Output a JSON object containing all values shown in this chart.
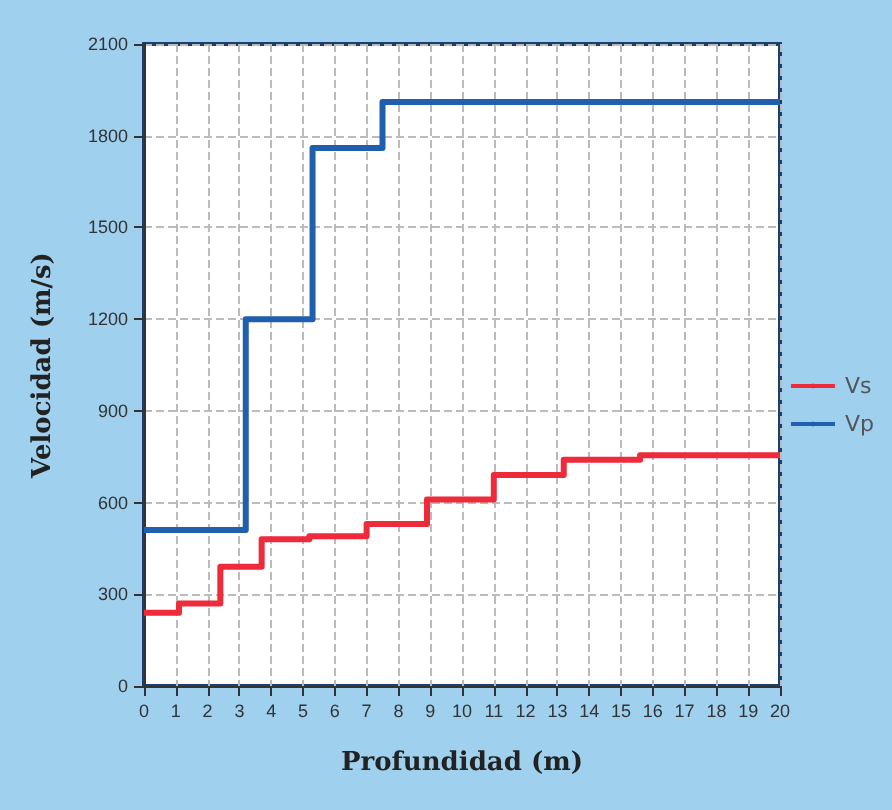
{
  "chart_data": {
    "type": "step",
    "xlabel": "Profundidad (m)",
    "ylabel": "Velocidad (m/s)",
    "series": [
      {
        "name": "Vs",
        "color": "#ee2b3b",
        "x": [
          0,
          1.1,
          2.4,
          3.7,
          5.2,
          7,
          8.9,
          11,
          13.2,
          15.6,
          20
        ],
        "values": [
          240,
          270,
          390,
          480,
          490,
          530,
          610,
          690,
          740,
          755,
          755
        ]
      },
      {
        "name": "Vp",
        "color": "#1f5fae",
        "x": [
          0,
          3.2,
          5.3,
          7.5,
          20
        ],
        "values": [
          510,
          1200,
          1760,
          1910,
          1910
        ]
      }
    ],
    "xlim": [
      0,
      20
    ],
    "xticks": [
      0,
      1,
      2,
      3,
      4,
      5,
      6,
      7,
      8,
      9,
      10,
      11,
      12,
      13,
      14,
      15,
      16,
      17,
      18,
      19,
      20
    ],
    "ylim": [
      0,
      2100
    ],
    "yticks": [
      0,
      300,
      600,
      900,
      1200,
      1500,
      1800,
      2100
    ],
    "grid": true,
    "legend": "right",
    "marker": "none",
    "line_style": "solid"
  }
}
